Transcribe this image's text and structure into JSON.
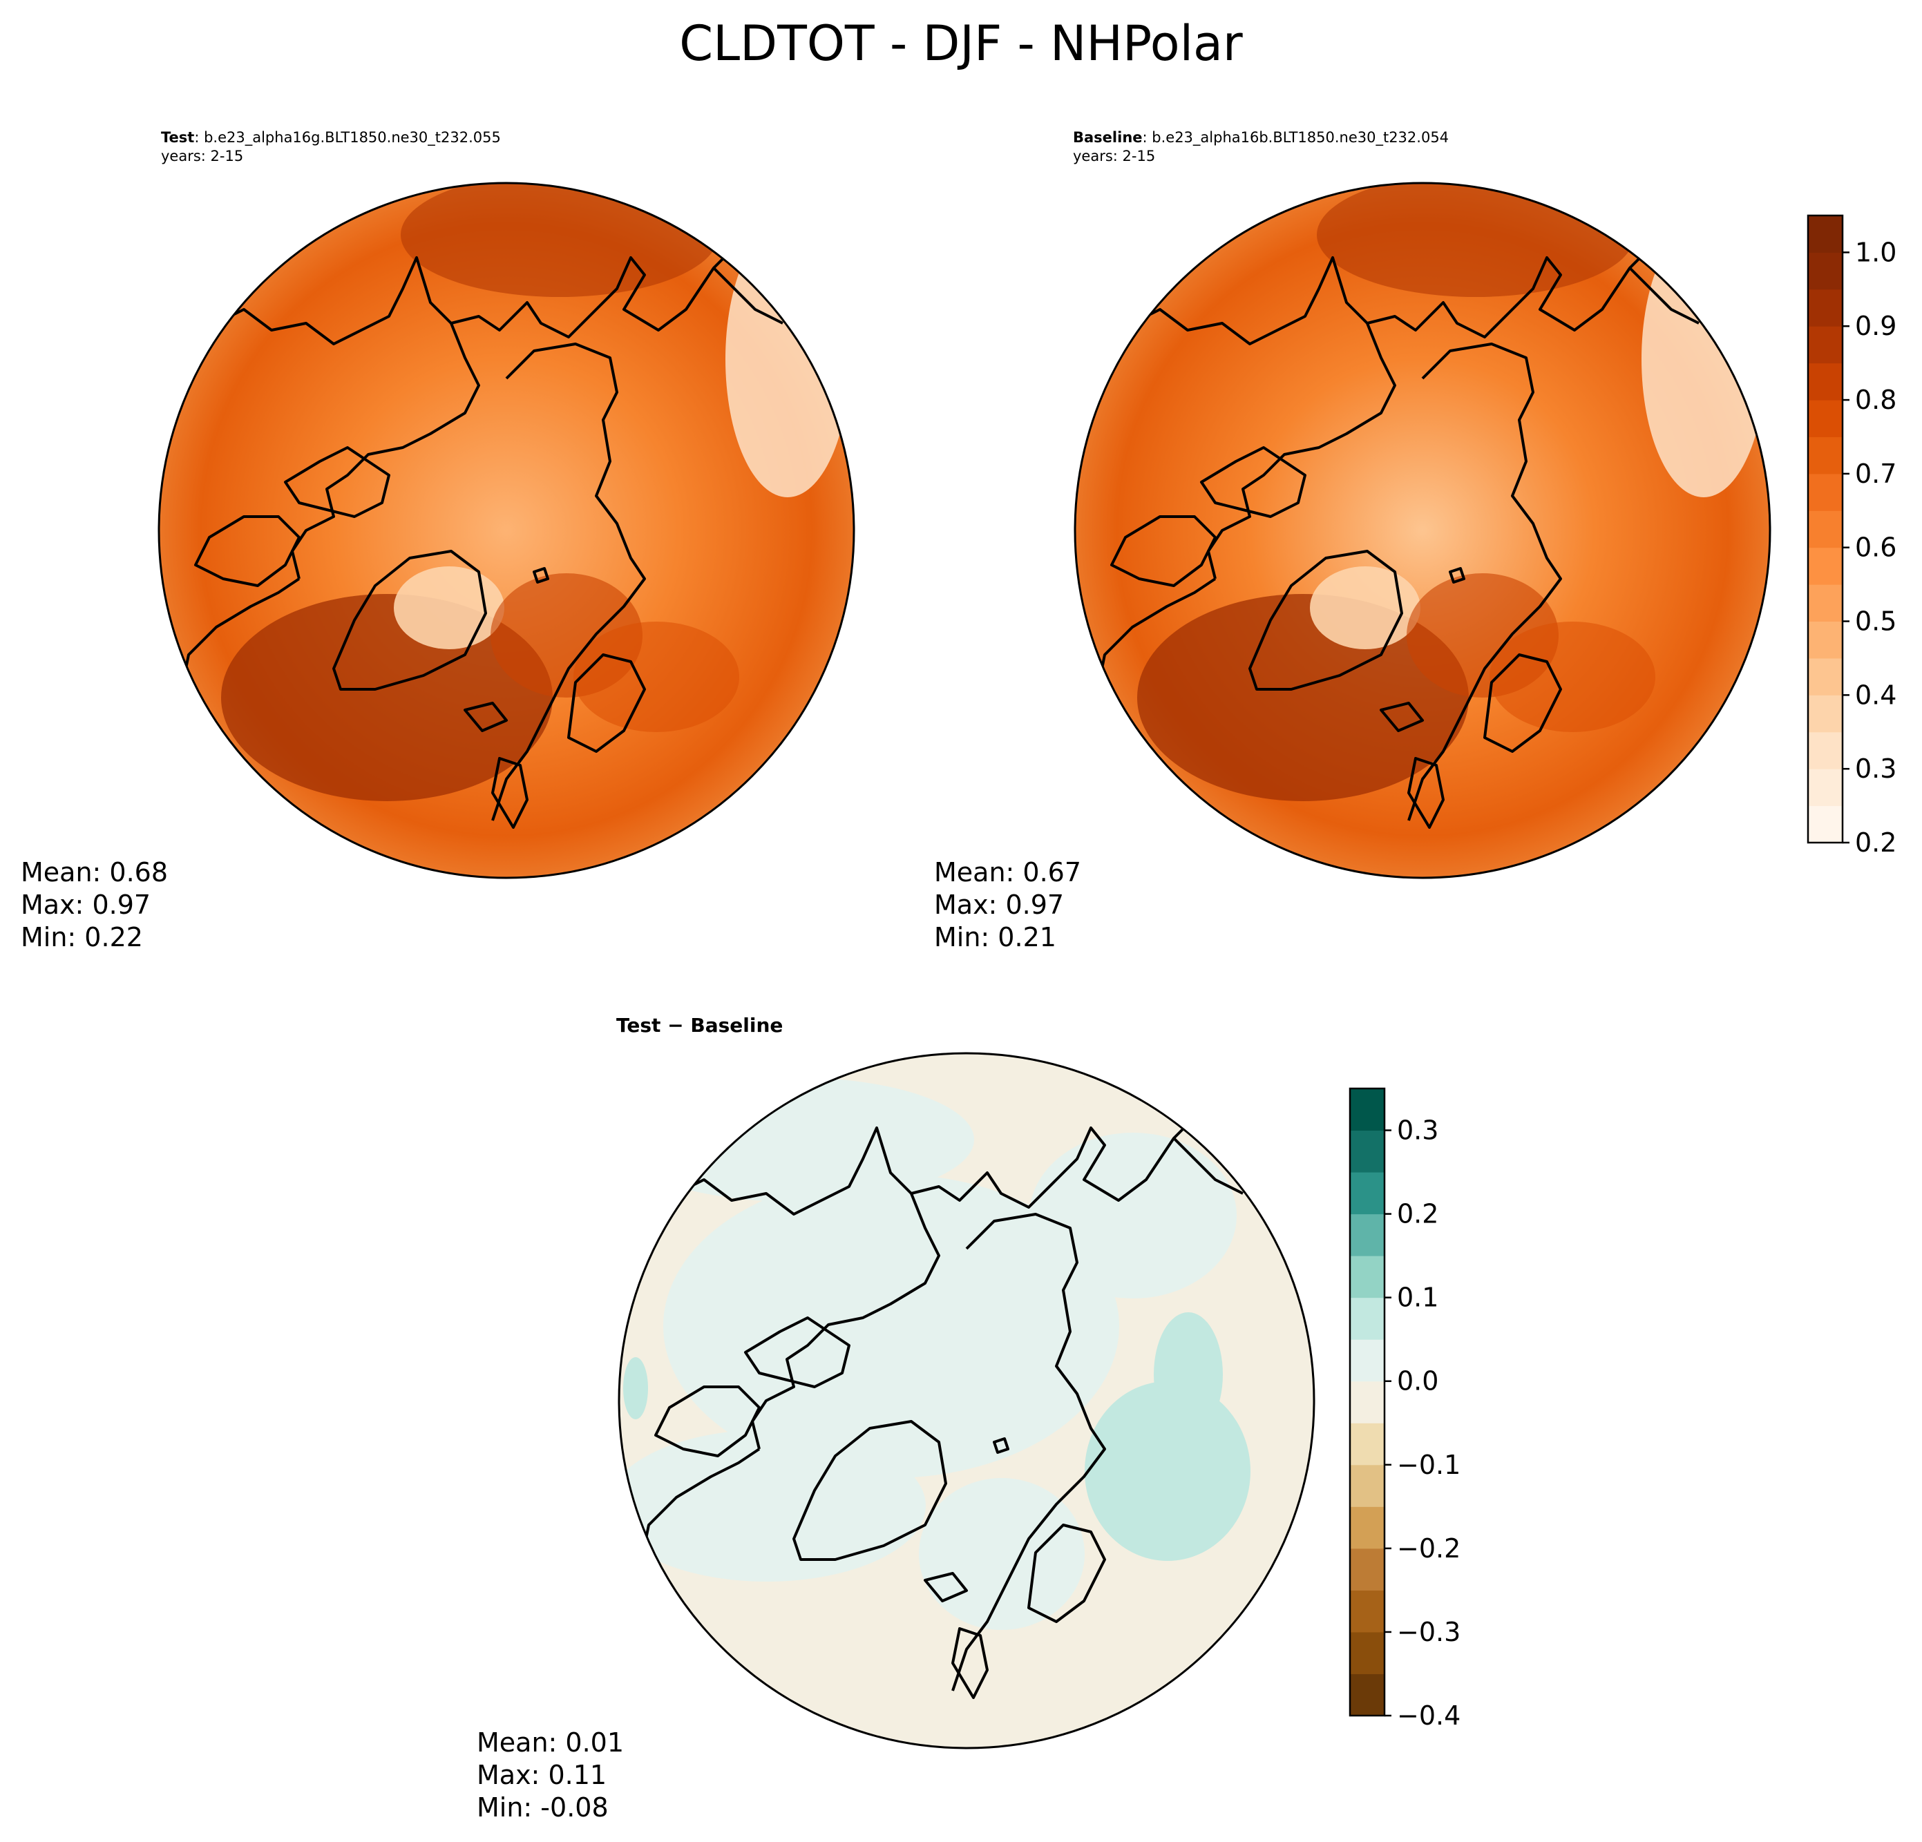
{
  "suptitle": "CLDTOT - DJF - NHPolar",
  "panels": {
    "test": {
      "label": "Test",
      "case": ": b.e23_alpha16g.BLT1850.ne30_t232.055",
      "years": "years: 2-15",
      "stats": [
        "Mean:  0.68",
        "Max:  0.97",
        "Min:  0.22"
      ]
    },
    "baseline": {
      "label": "Baseline",
      "case": ": b.e23_alpha16b.BLT1850.ne30_t232.054",
      "years": "years: 2-15",
      "stats": [
        "Mean:  0.67",
        "Max:  0.97",
        "Min:  0.21"
      ]
    },
    "diff": {
      "title": "Test − Baseline",
      "stats": [
        "Mean:  0.01",
        "Max:  0.11",
        "Min: -0.08"
      ]
    }
  },
  "chart_data": [
    {
      "type": "heatmap",
      "title": "Test",
      "projection": "north-polar-stereographic",
      "colormap": "Oranges",
      "stats": {
        "mean": 0.68,
        "max": 0.97,
        "min": 0.22
      }
    },
    {
      "type": "heatmap",
      "title": "Baseline",
      "projection": "north-polar-stereographic",
      "colormap": "Oranges",
      "stats": {
        "mean": 0.67,
        "max": 0.97,
        "min": 0.21
      },
      "colorbar": {
        "range": [
          0.2,
          1.05
        ],
        "ticks": [
          0.2,
          0.3,
          0.4,
          0.5,
          0.6,
          0.7,
          0.8,
          0.9,
          1.0
        ],
        "tick_labels": [
          "0.2",
          "0.3",
          "0.4",
          "0.5",
          "0.6",
          "0.7",
          "0.8",
          "0.9",
          "1.0"
        ],
        "levels": [
          0.2,
          0.25,
          0.3,
          0.35,
          0.4,
          0.45,
          0.5,
          0.55,
          0.6,
          0.65,
          0.7,
          0.75,
          0.8,
          0.85,
          0.9,
          0.95,
          1.0,
          1.05
        ],
        "colors": [
          "#fff5eb",
          "#feecd9",
          "#fee2c6",
          "#fdd4ab",
          "#fdc590",
          "#fdb373",
          "#fda25a",
          "#fd9142",
          "#f7802e",
          "#f16f1e",
          "#e65f0d",
          "#db4f04",
          "#c94202",
          "#b33803",
          "#a03003",
          "#8c2a04",
          "#7f2704"
        ]
      }
    },
    {
      "type": "heatmap",
      "title": "Test − Baseline",
      "projection": "north-polar-stereographic",
      "colormap": "BrBG",
      "stats": {
        "mean": 0.01,
        "max": 0.11,
        "min": -0.08
      },
      "colorbar": {
        "range": [
          -0.4,
          0.35
        ],
        "ticks": [
          -0.4,
          -0.3,
          -0.2,
          -0.1,
          0.0,
          0.1,
          0.2,
          0.3
        ],
        "tick_labels": [
          "−0.4",
          "−0.3",
          "−0.2",
          "−0.1",
          "0.0",
          "0.1",
          "0.2",
          "0.3"
        ],
        "levels": [
          -0.4,
          -0.35,
          -0.3,
          -0.25,
          -0.2,
          -0.15,
          -0.1,
          -0.05,
          0.0,
          0.05,
          0.1,
          0.15,
          0.2,
          0.25,
          0.3,
          0.35
        ],
        "colors": [
          "#6b3a08",
          "#8a4e0c",
          "#a66218",
          "#bd7c35",
          "#d3a055",
          "#e2c185",
          "#efdcb0",
          "#f4efe1",
          "#e5f2ee",
          "#c2e8e0",
          "#93d3c5",
          "#5fb4a9",
          "#2b9288",
          "#137167",
          "#00574b"
        ]
      }
    }
  ]
}
